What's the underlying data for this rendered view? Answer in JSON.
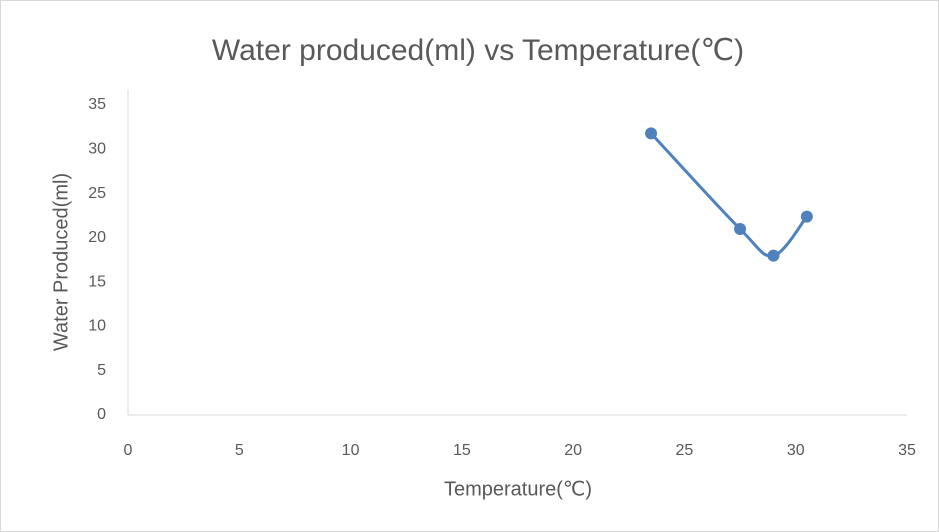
{
  "chart_data": {
    "type": "line",
    "title": "Water produced(ml) vs Temperature(℃)",
    "x_label": "Temperature(℃)",
    "y_label": "Water Produced(ml)",
    "series": [
      {
        "name": "Water Produced(ml)",
        "color": "#4f81bd",
        "x": [
          23.5,
          27.5,
          29,
          30.5
        ],
        "values": [
          31.8,
          21,
          18,
          22.4
        ]
      }
    ],
    "xlim": [
      0,
      35
    ],
    "xticks": [
      0,
      5,
      10,
      15,
      20,
      25,
      30,
      35
    ],
    "ylim": [
      0,
      35
    ],
    "yticks": [
      0,
      5,
      10,
      15,
      20,
      25,
      30,
      35
    ],
    "smooth": true,
    "markers": true
  }
}
